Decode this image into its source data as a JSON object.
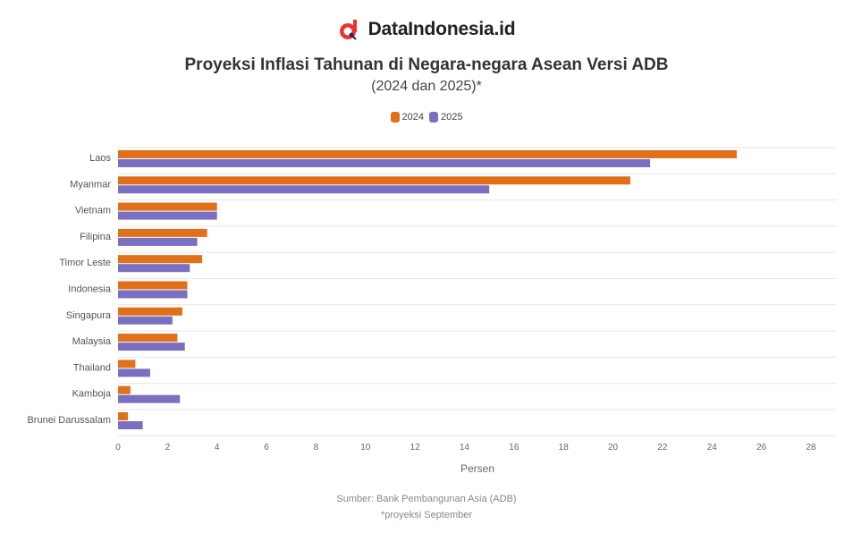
{
  "brand": {
    "name": "DataIndonesia.id",
    "logo_icon": "datainDonesia-logo-icon"
  },
  "colors": {
    "series_2024": "#E0701A",
    "series_2025": "#7A6FC0",
    "grid": "#e6e6e6",
    "logo": "#E8362E"
  },
  "chart_data": {
    "type": "bar",
    "orientation": "horizontal",
    "title": "Proyeksi Inflasi Tahunan di Negara-negara Asean Versi ADB",
    "subtitle": "(2024 dan 2025)*",
    "categories": [
      "Laos",
      "Myanmar",
      "Vietnam",
      "Filipina",
      "Timor Leste",
      "Indonesia",
      "Singapura",
      "Malaysia",
      "Thailand",
      "Kamboja",
      "Brunei Darussalam"
    ],
    "series": [
      {
        "name": "2024",
        "values": [
          25.0,
          20.7,
          4.0,
          3.6,
          3.4,
          2.8,
          2.6,
          2.4,
          0.7,
          0.5,
          0.4
        ]
      },
      {
        "name": "2025",
        "values": [
          21.5,
          15.0,
          4.0,
          3.2,
          2.9,
          2.8,
          2.2,
          2.7,
          1.3,
          2.5,
          1.0
        ]
      }
    ],
    "xlabel": "Persen",
    "ylabel": "",
    "xlim": [
      0,
      28
    ],
    "xticks": [
      0,
      2,
      4,
      6,
      8,
      10,
      12,
      14,
      16,
      18,
      20,
      22,
      24,
      26,
      28
    ],
    "grid": true,
    "legend_position": "top-center"
  },
  "footer": {
    "source": "Sumber: Bank Pembangunan Asia (ADB)",
    "note": "*proyeksi September"
  }
}
